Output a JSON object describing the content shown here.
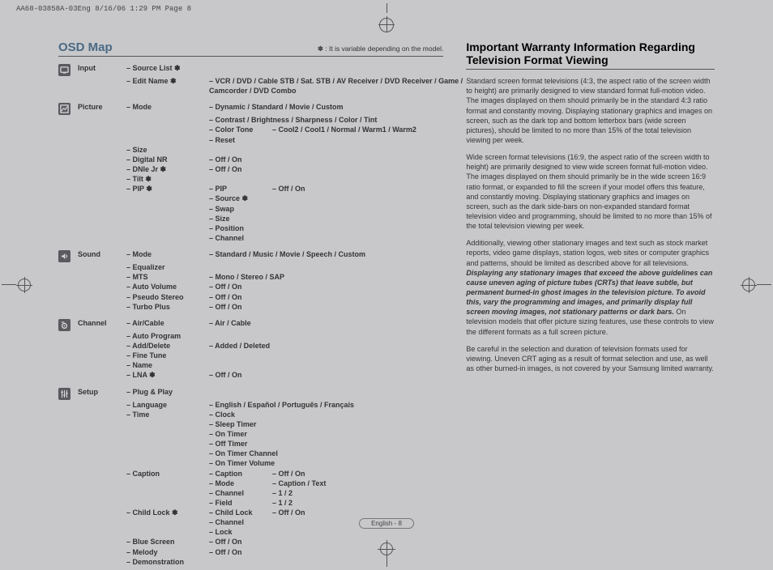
{
  "slug": "AA68-03858A-03Eng  8/16/06  1:29 PM  Page 8",
  "osd": {
    "title": "OSD Map",
    "note": "✽ : It is variable depending on the model.",
    "sections": [
      {
        "icon": "input",
        "category": "Input",
        "rows": [
          {
            "c2": "– Source List ✽",
            "c3": ""
          },
          {
            "c2": "– Edit Name ✽",
            "c3": "– VCR / DVD / Cable STB / Sat. STB / AV Receiver / DVD Receiver / Game /"
          },
          {
            "c2": "",
            "c3": "   Camcorder / DVD Combo"
          }
        ]
      },
      {
        "icon": "picture",
        "category": "Picture",
        "rows": [
          {
            "c2": "– Mode",
            "c3": "– Dynamic / Standard / Movie / Custom"
          },
          {
            "c2": "",
            "c3": "– Contrast / Brightness / Sharpness / Color / Tint"
          },
          {
            "c2": "",
            "sub": {
              "lab": "– Color Tone",
              "val": "– Cool2 / Cool1 / Normal / Warm1 / Warm2"
            }
          },
          {
            "c2": "",
            "c3": "– Reset"
          },
          {
            "c2": "– Size",
            "c3": ""
          },
          {
            "c2": "– Digital NR",
            "c3": "– Off / On"
          },
          {
            "c2": "– DNIe Jr ✽",
            "c3": "– Off / On"
          },
          {
            "c2": "– Tilt ✽",
            "c3": ""
          },
          {
            "c2": "– PIP  ✽",
            "sub": {
              "lab": "– PIP",
              "val": "– Off / On"
            }
          },
          {
            "c2": "",
            "c3": "– Source ✽"
          },
          {
            "c2": "",
            "c3": "– Swap"
          },
          {
            "c2": "",
            "c3": "– Size"
          },
          {
            "c2": "",
            "c3": "– Position"
          },
          {
            "c2": "",
            "c3": "– Channel"
          }
        ]
      },
      {
        "icon": "sound",
        "category": "Sound",
        "rows": [
          {
            "c2": "– Mode",
            "c3": "– Standard / Music / Movie / Speech / Custom"
          },
          {
            "c2": "– Equalizer",
            "c3": ""
          },
          {
            "c2": "– MTS",
            "c3": "– Mono / Stereo / SAP"
          },
          {
            "c2": "– Auto Volume",
            "c3": "– Off / On"
          },
          {
            "c2": "– Pseudo Stereo",
            "c3": "– Off / On"
          },
          {
            "c2": "– Turbo Plus",
            "c3": "– Off / On"
          }
        ]
      },
      {
        "icon": "channel",
        "category": "Channel",
        "rows": [
          {
            "c2": "– Air/Cable",
            "c3": "– Air / Cable"
          },
          {
            "c2": "– Auto Program",
            "c3": ""
          },
          {
            "c2": "– Add/Delete",
            "c3": "– Added / Deleted"
          },
          {
            "c2": "– Fine Tune",
            "c3": ""
          },
          {
            "c2": "– Name",
            "c3": ""
          },
          {
            "c2": "– LNA ✽",
            "c3": "– Off / On"
          }
        ]
      },
      {
        "icon": "setup",
        "category": "Setup",
        "rows": [
          {
            "c2": "– Plug & Play",
            "c3": ""
          },
          {
            "c2": "– Language",
            "c3": "– English / Español / Português / Français"
          },
          {
            "c2": "– Time",
            "c3": "– Clock"
          },
          {
            "c2": "",
            "c3": "– Sleep Timer"
          },
          {
            "c2": "",
            "c3": "– On Timer"
          },
          {
            "c2": "",
            "c3": "– Off Timer"
          },
          {
            "c2": "",
            "c3": "– On Timer Channel"
          },
          {
            "c2": "",
            "c3": "– On Timer Volume"
          },
          {
            "c2": "– Caption",
            "sub": {
              "lab": "– Caption",
              "val": "– Off / On"
            }
          },
          {
            "c2": "",
            "sub": {
              "lab": "– Mode",
              "val": "– Caption / Text"
            }
          },
          {
            "c2": "",
            "sub": {
              "lab": "– Channel",
              "val": "– 1 / 2"
            }
          },
          {
            "c2": "",
            "sub": {
              "lab": "– Field",
              "val": "– 1 / 2"
            }
          },
          {
            "c2": "– Child Lock ✽",
            "sub": {
              "lab": "– Child Lock",
              "val": "– Off / On"
            }
          },
          {
            "c2": "",
            "c3": "– Channel"
          },
          {
            "c2": "",
            "c3": "– Lock"
          },
          {
            "c2": "– Blue Screen",
            "c3": "– Off / On"
          },
          {
            "c2": "– Melody",
            "c3": "– Off / On"
          },
          {
            "c2": "– Demonstration",
            "c3": ""
          }
        ]
      }
    ]
  },
  "warranty": {
    "title": "Important Warranty Information Regarding Television Format Viewing",
    "p1": "Standard screen format televisions (4:3, the aspect ratio of the screen width to height) are primarily designed to view standard format full-motion video. The images displayed on them should primarily be in the standard 4:3 ratio format and constantly moving. Displaying stationary graphics and images on screen, such as the dark top and bottom letterbox bars (wide screen pictures), should be limited to no more than 15% of the total television viewing per week.",
    "p2": "Wide screen format televisions (16:9, the aspect ratio of the screen width to height) are primarily designed to view wide screen format full-motion video. The images displayed on them should primarily be in the wide screen 16:9 ratio format, or expanded to fill the screen if your model offers this feature, and constantly moving. Displaying stationary graphics and images on screen, such as the dark side-bars on non-expanded standard format television video and programming, should be limited to no more than 15% of the total television viewing per week.",
    "p3a": "Additionally, viewing other stationary images and text such as stock market reports, video game displays, station logos, web sites or computer graphics and patterns, should be limited as described above for all televisions. ",
    "p3b": "Displaying any stationary images that exceed the above guidelines can cause uneven aging of picture tubes (CRTs) that leave subtle, but permanent burned-in ghost images in the television picture. To avoid this, vary the programming and images, and primarily display full screen moving images, not stationary patterns or dark bars.",
    "p3c": " On television models that offer picture sizing features, use these controls to view the different formats as a full screen picture.",
    "p4": "Be careful in the selection and duration of television formats used for viewing. Uneven CRT aging as a result of format selection and use, as well as other burned-in images, is not covered by your Samsung limited warranty."
  },
  "footer": "English - 8"
}
